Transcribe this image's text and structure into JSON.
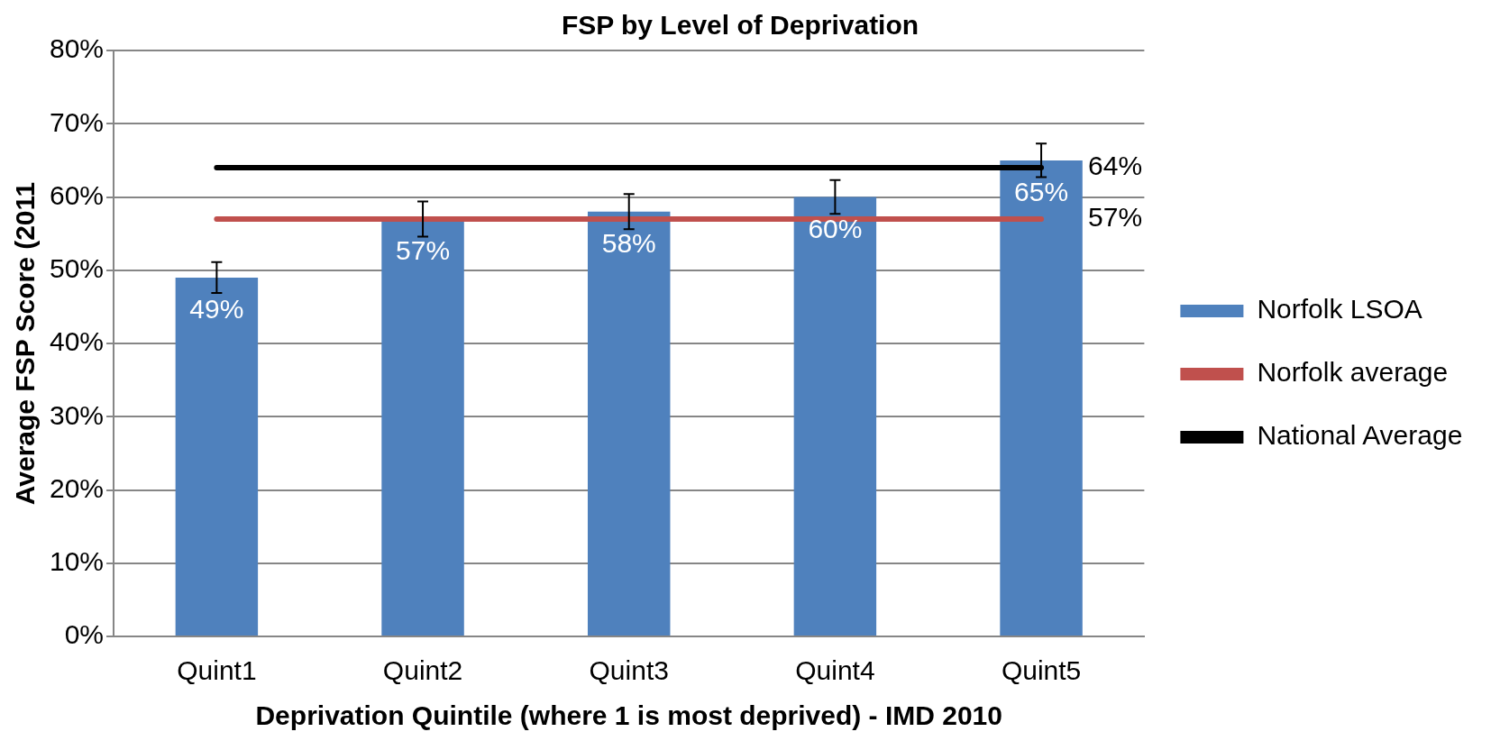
{
  "chart_data": {
    "type": "bar",
    "title": "FSP by Level of Deprivation",
    "xlabel": "Deprivation Quintile (where 1 is most deprived) - IMD 2010",
    "ylabel": "Average FSP Score (2011",
    "categories": [
      "Quint1",
      "Quint2",
      "Quint3",
      "Quint4",
      "Quint5"
    ],
    "series": [
      {
        "name": "Norfolk LSOA",
        "color": "#4f81bd",
        "values": [
          49,
          57,
          58,
          60,
          65
        ],
        "errors": [
          2.1,
          2.4,
          2.4,
          2.3,
          2.3
        ],
        "value_labels": [
          "49%",
          "57%",
          "58%",
          "60%",
          "65%"
        ]
      },
      {
        "name": "Norfolk average",
        "type": "line",
        "color": "#c0504d",
        "values": [
          57,
          57,
          57,
          57,
          57
        ],
        "value_labels": [
          null,
          null,
          null,
          null,
          "57%"
        ]
      },
      {
        "name": "National Average",
        "type": "line",
        "color": "#000000",
        "values": [
          64,
          64,
          64,
          64,
          64
        ],
        "value_labels": [
          null,
          null,
          null,
          null,
          "64%"
        ]
      }
    ],
    "ylim": [
      0,
      80
    ],
    "yticks": [
      {
        "value": 0,
        "label": "0%"
      },
      {
        "value": 10,
        "label": "10%"
      },
      {
        "value": 20,
        "label": "20%"
      },
      {
        "value": 30,
        "label": "30%"
      },
      {
        "value": 40,
        "label": "40%"
      },
      {
        "value": 50,
        "label": "50%"
      },
      {
        "value": 60,
        "label": "60%"
      },
      {
        "value": 70,
        "label": "70%"
      },
      {
        "value": 80,
        "label": "80%"
      }
    ],
    "grid": "y",
    "legend": "right",
    "marker": "none"
  }
}
